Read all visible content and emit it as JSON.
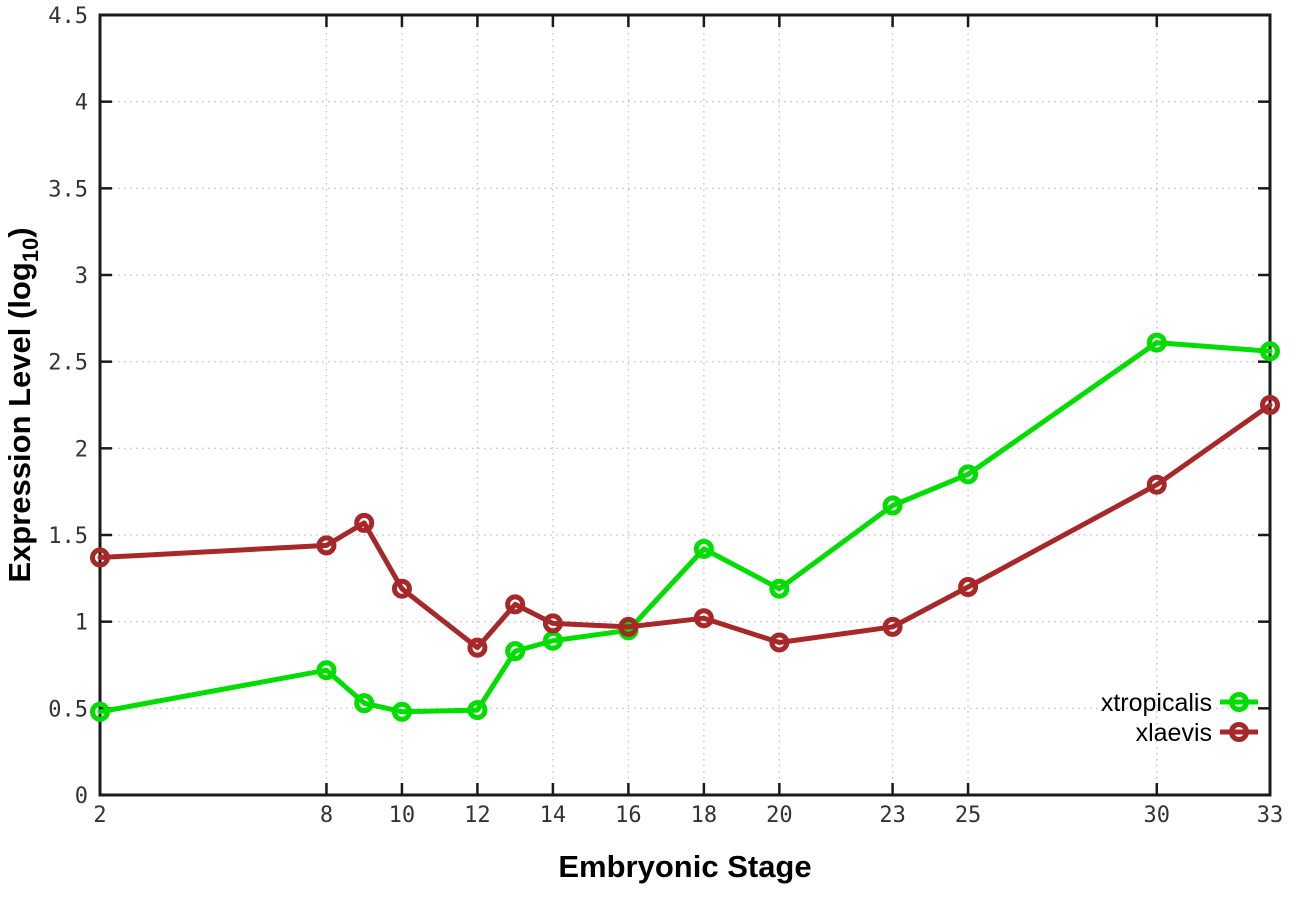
{
  "chart_data": {
    "type": "line",
    "title": "",
    "xlabel": "Embryonic Stage",
    "ylabel": "Expression Level (log10)",
    "ylabel_parts": {
      "main": "Expression Level (log",
      "sub": "10",
      "end": ")"
    },
    "xlim": [
      2,
      33
    ],
    "ylim": [
      0,
      4.5
    ],
    "x_ticks": [
      2,
      8,
      10,
      12,
      14,
      16,
      18,
      20,
      23,
      25,
      30,
      33
    ],
    "y_ticks": [
      0,
      0.5,
      1,
      1.5,
      2,
      2.5,
      3,
      3.5,
      4,
      4.5
    ],
    "grid": true,
    "legend_position": "bottom-right",
    "x": [
      2,
      8,
      9,
      10,
      12,
      13,
      14,
      16,
      18,
      20,
      23,
      25,
      30,
      33
    ],
    "series": [
      {
        "name": "xtropicalis",
        "color": "#00dd00",
        "values": [
          0.48,
          0.72,
          0.53,
          0.48,
          0.49,
          0.83,
          0.89,
          0.95,
          1.42,
          1.19,
          1.67,
          1.85,
          2.61,
          2.56
        ]
      },
      {
        "name": "xlaevis",
        "color": "#a62828",
        "values": [
          1.37,
          1.44,
          1.57,
          1.19,
          0.85,
          1.1,
          0.99,
          0.97,
          1.02,
          0.88,
          0.97,
          1.2,
          1.79,
          2.25
        ]
      }
    ],
    "axis_color": "#1a1a1a",
    "grid_color": "#c9c9c9",
    "tick_label_color": "#333333"
  }
}
